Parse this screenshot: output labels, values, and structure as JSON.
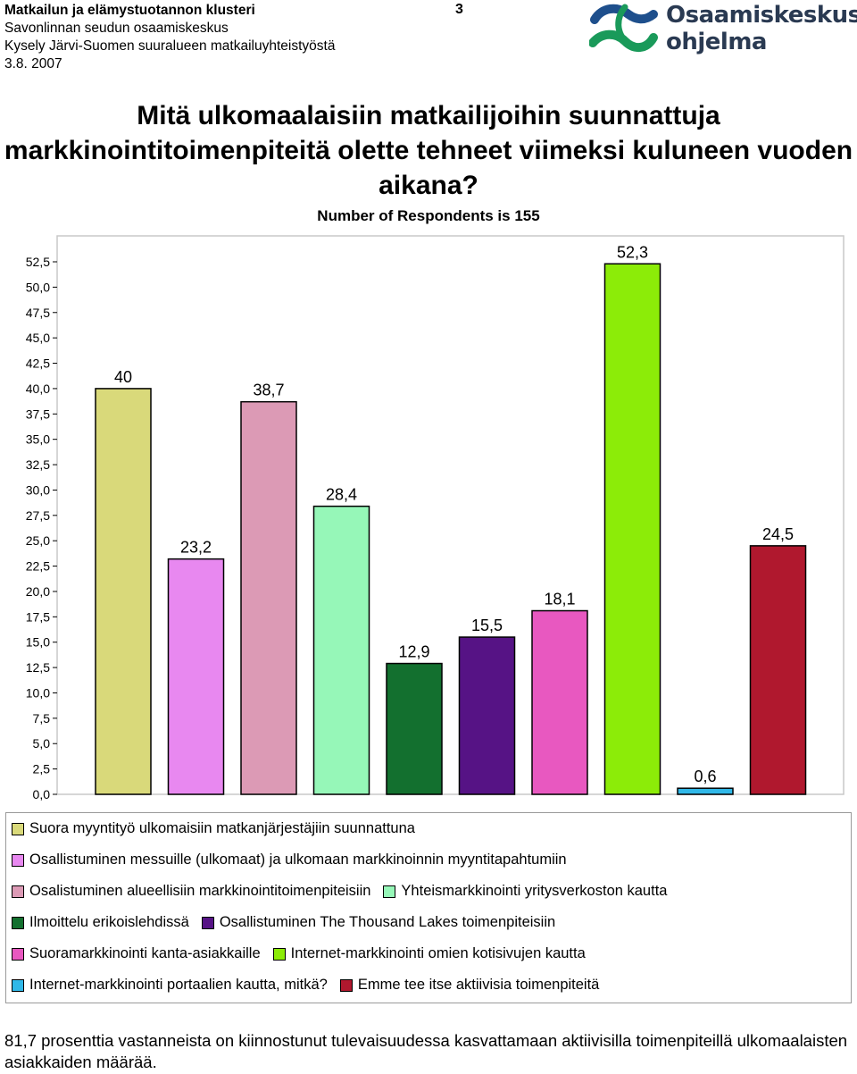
{
  "header": {
    "line1": "Matkailun ja elämystuotannon klusteri",
    "line2": "Savonlinnan seudun osaamiskeskus",
    "line3": "Kysely Järvi-Suomen suuralueen matkailuyhteistyöstä",
    "line4": "3.8. 2007",
    "page_number": "3"
  },
  "logo": {
    "line1": "Osaamiskeskus-",
    "line2": "ohjelma"
  },
  "chart_data": {
    "type": "bar",
    "title": "Mitä ulkomaalaisiin matkailijoihin suunnattuja markkinointitoimenpiteitä olette tehneet viimeksi kuluneen vuoden aikana?",
    "subtitle": "Number of Respondents is 155",
    "ylim": [
      0,
      52.5
    ],
    "yticks": [
      "0,0",
      "2,5",
      "5,0",
      "7,5",
      "10,0",
      "12,5",
      "15,0",
      "17,5",
      "20,0",
      "22,5",
      "25,0",
      "27,5",
      "30,0",
      "32,5",
      "35,0",
      "37,5",
      "40,0",
      "42,5",
      "45,0",
      "47,5",
      "50,0",
      "52,5"
    ],
    "grid": false,
    "legend_placement": "bottom",
    "series": [
      {
        "name": "Suora myyntityö ulkomaisiin matkanjärjestäjiin suunnattuna",
        "value": 40,
        "label": "40",
        "color": "#d9d97a"
      },
      {
        "name": "Osallistuminen messuille (ulkomaat) ja ulkomaan markkinoinnin myyntitapahtumiin",
        "value": 23.2,
        "label": "23,2",
        "color": "#e888f0"
      },
      {
        "name": "Osalistuminen alueellisiin markkinointitoimenpiteisiin",
        "value": 38.7,
        "label": "38,7",
        "color": "#dc9ab5"
      },
      {
        "name": "Yhteismarkkinointi yritysverkoston kautta",
        "value": 28.4,
        "label": "28,4",
        "color": "#96f7b8"
      },
      {
        "name": "Ilmoittelu erikoislehdissä",
        "value": 12.9,
        "label": "12,9",
        "color": "#13702f"
      },
      {
        "name": "Osallistuminen The Thousand Lakes toimenpiteisiin",
        "value": 15.5,
        "label": "15,5",
        "color": "#561385"
      },
      {
        "name": "Suoramarkkinointi kanta-asiakkaille",
        "value": 18.1,
        "label": "18,1",
        "color": "#e858c0"
      },
      {
        "name": "Internet-markkinointi omien kotisivujen kautta",
        "value": 52.3,
        "label": "52,3",
        "color": "#8cec08"
      },
      {
        "name": "Internet-markkinointi portaalien kautta, mitkä?",
        "value": 0.6,
        "label": "0,6",
        "color": "#30b8e8"
      },
      {
        "name": "Emme tee itse aktiivisia toimenpiteitä",
        "value": 24.5,
        "label": "24,5",
        "color": "#b0182e"
      }
    ]
  },
  "legend_rows": [
    [
      0
    ],
    [
      1
    ],
    [
      2,
      3
    ],
    [
      4,
      5
    ],
    [
      6,
      7
    ],
    [
      8,
      9
    ]
  ],
  "footnote": "81,7 prosenttia vastanneista on kiinnostunut tulevaisuudessa kasvattamaan aktiivisilla toimenpiteillä ulkomaalaisten asiakkaiden määrää."
}
